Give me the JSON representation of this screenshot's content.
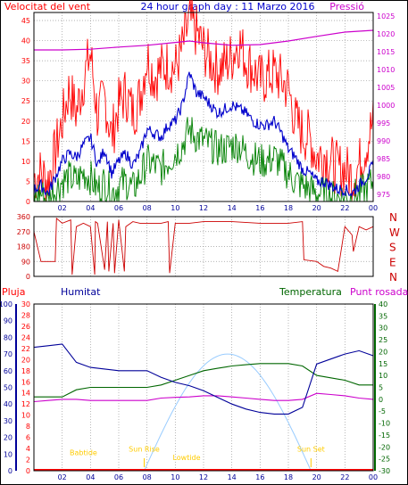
{
  "header": {
    "title": "24 hour graph day : 11 Marzo 2016",
    "left_label": "Velocitat del vent",
    "right_label": "Pressió"
  },
  "colors": {
    "wind": "#ff0000",
    "gust_avg": "#0000cc",
    "wind_min": "#008000",
    "pressure": "#cc00cc",
    "direction": "#cc0000",
    "humidity": "#000099",
    "temperature": "#006600",
    "dew_point": "#cc00cc",
    "solar": "#99ccff",
    "annotation": "#ffcc00",
    "rain": "#ff0000"
  },
  "chart_data": [
    {
      "type": "line",
      "name": "wind-pressure",
      "x_ticks": [
        "02",
        "04",
        "06",
        "08",
        "10",
        "12",
        "14",
        "16",
        "18",
        "20",
        "22",
        "00"
      ],
      "y_left_ticks": [
        0,
        5,
        10,
        15,
        20,
        25,
        30,
        35,
        40,
        45
      ],
      "y_right_ticks": [
        975,
        980,
        985,
        990,
        995,
        1000,
        1005,
        1010,
        1015,
        1020,
        1025
      ],
      "ylim_left": [
        0,
        47
      ],
      "ylim_right": [
        973,
        1026
      ],
      "wind_avg": {
        "x": [
          0,
          0.5,
          1,
          1.5,
          2,
          2.5,
          3,
          3.5,
          4,
          4.5,
          5,
          5.5,
          6,
          6.5,
          7,
          7.5,
          8,
          8.5,
          9,
          9.5,
          10,
          10.5,
          11,
          11.5,
          12,
          12.5,
          13,
          13.5,
          14,
          14.5,
          15,
          15.5,
          16,
          16.5,
          17,
          17.5,
          18,
          18.5,
          19,
          19.5,
          20,
          20.5,
          21,
          21.5,
          22,
          22.5,
          23,
          23.5,
          24
        ],
        "values": [
          3,
          4,
          2,
          6,
          10,
          12,
          11,
          14,
          16,
          9,
          13,
          7,
          10,
          12,
          9,
          12,
          18,
          17,
          16,
          19,
          20,
          24,
          32,
          27,
          26,
          24,
          22,
          23,
          24,
          23,
          22,
          20,
          19,
          19,
          20,
          17,
          13,
          11,
          8,
          7,
          5,
          5,
          4,
          3,
          3,
          2,
          4,
          6,
          9
        ]
      },
      "wind_max": {
        "x": [
          0,
          0.5,
          1,
          1.5,
          2,
          2.5,
          3,
          3.5,
          4,
          4.5,
          5,
          5.5,
          6,
          6.5,
          7,
          7.5,
          8,
          8.5,
          9,
          9.5,
          10,
          10.5,
          11,
          11.5,
          12,
          12.5,
          13,
          13.5,
          14,
          14.5,
          15,
          15.5,
          16,
          16.5,
          17,
          17.5,
          18,
          18.5,
          19,
          19.5,
          20,
          20.5,
          21,
          21.5,
          22,
          22.5,
          23,
          23.5,
          24
        ],
        "values": [
          6,
          7,
          5,
          12,
          20,
          28,
          22,
          30,
          37,
          21,
          26,
          16,
          24,
          27,
          22,
          26,
          36,
          31,
          33,
          34,
          33,
          38,
          45,
          42,
          38,
          35,
          33,
          34,
          36,
          40,
          35,
          33,
          30,
          31,
          32,
          30,
          28,
          20,
          17,
          16,
          11,
          12,
          10,
          8,
          8,
          6,
          9,
          14,
          20
        ]
      },
      "wind_min": {
        "x": [
          0,
          0.5,
          1,
          1.5,
          2,
          2.5,
          3,
          3.5,
          4,
          4.5,
          5,
          5.5,
          6,
          6.5,
          7,
          7.5,
          8,
          8.5,
          9,
          9.5,
          10,
          10.5,
          11,
          11.5,
          12,
          12.5,
          13,
          13.5,
          14,
          14.5,
          15,
          15.5,
          16,
          16.5,
          17,
          17.5,
          18,
          18.5,
          19,
          19.5,
          20,
          20.5,
          21,
          21.5,
          22,
          22.5,
          23,
          23.5,
          24
        ],
        "values": [
          1,
          2,
          0,
          3,
          5,
          6,
          5,
          7,
          6,
          3,
          5,
          2,
          4,
          5,
          3,
          6,
          10,
          9,
          8,
          10,
          12,
          14,
          18,
          16,
          15,
          14,
          13,
          13,
          14,
          14,
          12,
          11,
          10,
          10,
          11,
          9,
          7,
          5,
          4,
          3,
          2,
          2,
          1,
          1,
          1,
          1,
          2,
          3,
          5
        ]
      },
      "pressure": {
        "x": [
          0,
          2,
          4,
          6,
          8,
          10,
          11,
          12,
          14,
          16,
          18,
          20,
          22,
          24
        ],
        "values": [
          1015.5,
          1015.5,
          1015.7,
          1016.3,
          1016.8,
          1017.6,
          1018,
          1017.5,
          1016.8,
          1017,
          1018,
          1019.3,
          1020.5,
          1021
        ]
      }
    },
    {
      "type": "line",
      "name": "wind-direction",
      "y_left_ticks": [
        0,
        90,
        180,
        270,
        360
      ],
      "right_labels": [
        "N",
        "W",
        "S",
        "E",
        "N"
      ],
      "ylim": [
        0,
        360
      ],
      "direction": {
        "x": [
          0,
          0.5,
          1,
          1.5,
          1.6,
          2,
          2.6,
          2.7,
          3,
          3.5,
          4,
          4.3,
          4.35,
          4.5,
          5,
          5.2,
          5.3,
          5.6,
          5.7,
          6,
          6.4,
          6.5,
          7,
          7.5,
          8,
          9,
          9.5,
          9.6,
          10,
          11,
          12,
          14,
          16,
          18,
          19,
          19.1,
          20,
          20.5,
          21,
          21.5,
          22,
          22.5,
          22.6,
          23,
          23.5,
          24
        ],
        "values": [
          270,
          90,
          90,
          90,
          350,
          320,
          340,
          10,
          300,
          320,
          300,
          10,
          330,
          320,
          40,
          330,
          30,
          320,
          20,
          340,
          30,
          300,
          330,
          320,
          320,
          320,
          330,
          20,
          320,
          320,
          330,
          330,
          320,
          320,
          330,
          100,
          90,
          60,
          50,
          30,
          300,
          250,
          150,
          300,
          280,
          300
        ]
      }
    },
    {
      "type": "line",
      "name": "rain-humidity-temperature",
      "left_labels": [
        "Pluja",
        "Humitat"
      ],
      "right_labels": [
        "Temperatura",
        "Punt rosada"
      ],
      "y_rain_ticks": [
        0,
        2,
        4,
        6,
        8,
        10,
        12,
        14,
        16,
        18,
        20,
        22,
        24,
        26,
        28,
        30
      ],
      "y_hum_ticks": [
        0,
        10,
        20,
        30,
        40,
        50,
        60,
        70,
        80,
        90,
        100
      ],
      "y_temp_ticks": [
        -30,
        -25,
        -20,
        -15,
        -10,
        -5,
        0,
        5,
        10,
        15,
        20,
        25,
        30,
        35,
        40
      ],
      "ylim_hum": [
        0,
        100
      ],
      "ylim_temp": [
        -30,
        40
      ],
      "humidity": {
        "x": [
          0,
          1,
          2,
          3,
          4,
          5,
          6,
          7,
          8,
          9,
          10,
          11,
          12,
          13,
          14,
          15,
          16,
          17,
          18,
          19,
          20,
          21,
          22,
          23,
          24
        ],
        "values": [
          74,
          75,
          76,
          65,
          62,
          61,
          60,
          60,
          60,
          56,
          53,
          51,
          48,
          44,
          40,
          37,
          35,
          34,
          34,
          38,
          64,
          67,
          70,
          72,
          69
        ]
      },
      "temperature": {
        "x": [
          0,
          1,
          2,
          3,
          4,
          5,
          6,
          7,
          8,
          9,
          10,
          11,
          12,
          13,
          14,
          15,
          16,
          17,
          18,
          19,
          20,
          21,
          22,
          23,
          24
        ],
        "values": [
          1,
          1,
          1,
          4,
          5,
          5,
          5,
          5,
          5,
          6,
          8,
          10,
          12,
          13,
          14,
          14.5,
          15,
          15,
          15,
          14,
          10,
          9,
          8,
          6,
          6
        ]
      },
      "dew_point": {
        "x": [
          0,
          1,
          2,
          3,
          4,
          5,
          6,
          7,
          8,
          9,
          10,
          11,
          12,
          13,
          14,
          15,
          16,
          17,
          18,
          19,
          20,
          21,
          22,
          23,
          24
        ],
        "values": [
          -1,
          -0.5,
          0,
          0,
          -0.5,
          -0.5,
          -0.5,
          -0.5,
          -0.5,
          0.5,
          0.8,
          1,
          1.5,
          1.5,
          1,
          0.5,
          0,
          -0.5,
          -0.5,
          0,
          2.5,
          2,
          1.5,
          0.5,
          0
        ]
      },
      "solar_peak_hour": 14.5,
      "sunrise_hour": 7.8,
      "sunset_hour": 19.6,
      "annotations": [
        {
          "text": "Babtide",
          "x": 3.5,
          "y": -23.5
        },
        {
          "text": "Sun Rise",
          "x": 7.8,
          "y": -22
        },
        {
          "text": "Lowtide",
          "x": 10.8,
          "y": -25.5
        },
        {
          "text": "Sun Set",
          "x": 19.6,
          "y": -22
        }
      ]
    }
  ]
}
